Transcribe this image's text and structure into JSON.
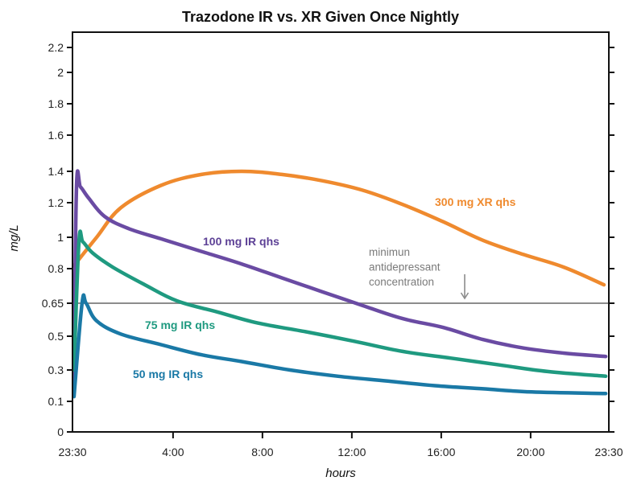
{
  "chart_data": {
    "type": "line",
    "title": "Trazodone IR vs. XR Given Once Nightly",
    "xlabel": "hours",
    "ylabel": "mg/L",
    "x_unit": "hours after 23:30 dose",
    "xlim": [
      0,
      24
    ],
    "x_ticks": [
      {
        "value": 0,
        "label": "23:30"
      },
      {
        "value": 4.5,
        "label": "4:00"
      },
      {
        "value": 8.5,
        "label": "8:00"
      },
      {
        "value": 12.5,
        "label": "12:00"
      },
      {
        "value": 16.5,
        "label": "16:00"
      },
      {
        "value": 20.5,
        "label": "20:00"
      },
      {
        "value": 24,
        "label": "23:30"
      }
    ],
    "y_ticks": [
      {
        "value": 0,
        "label": "0"
      },
      {
        "value": 0.1,
        "label": "0.1"
      },
      {
        "value": 0.3,
        "label": "0.3"
      },
      {
        "value": 0.5,
        "label": "0.5"
      },
      {
        "value": 0.65,
        "label": "0.65"
      },
      {
        "value": 0.8,
        "label": "0.8"
      },
      {
        "value": 1.0,
        "label": "1"
      },
      {
        "value": 1.2,
        "label": "1.2"
      },
      {
        "value": 1.4,
        "label": "1.4"
      },
      {
        "value": 1.6,
        "label": "1.6"
      },
      {
        "value": 1.8,
        "label": "1.8"
      },
      {
        "value": 2.0,
        "label": "2"
      },
      {
        "value": 2.2,
        "label": "2.2"
      }
    ],
    "ylim": [
      0,
      2.3
    ],
    "grid": false,
    "reference_line": {
      "value": 0.65,
      "label_lines": [
        "minimun",
        "antidepressant",
        "concentration"
      ],
      "color": "#8c8c8c"
    },
    "series": [
      {
        "name": "300 mg XR qhs",
        "color": "#ef8a2e",
        "x": [
          0.07,
          1.08,
          2.16,
          3.96,
          5.77,
          7.57,
          9.37,
          11.17,
          12.97,
          14.77,
          16.58,
          18.38,
          20.18,
          21.98,
          23.78
        ],
        "y": [
          0.82,
          1.0,
          1.17,
          1.31,
          1.38,
          1.4,
          1.38,
          1.34,
          1.28,
          1.19,
          1.09,
          0.98,
          0.89,
          0.81,
          0.73
        ]
      },
      {
        "name": "100 mg IR qhs",
        "color": "#6a4ba3",
        "x": [
          0.07,
          0.18,
          0.36,
          0.72,
          1.44,
          2.52,
          3.96,
          5.77,
          7.57,
          9.37,
          11.17,
          12.97,
          14.77,
          16.58,
          18.38,
          20.18,
          21.98,
          23.86
        ],
        "y": [
          0.22,
          1.3,
          1.3,
          1.23,
          1.12,
          1.05,
          0.99,
          0.91,
          0.83,
          0.76,
          0.7,
          0.64,
          0.58,
          0.54,
          0.48,
          0.43,
          0.4,
          0.38
        ]
      },
      {
        "name": "75 mg IR qhs",
        "color": "#1f9a80",
        "x": [
          0.07,
          0.29,
          0.47,
          0.9,
          1.8,
          3.24,
          4.68,
          6.49,
          8.29,
          10.45,
          12.61,
          14.77,
          16.94,
          19.1,
          21.26,
          23.86
        ],
        "y": [
          0.3,
          0.97,
          0.97,
          0.9,
          0.81,
          0.73,
          0.66,
          0.61,
          0.56,
          0.52,
          0.47,
          0.41,
          0.37,
          0.33,
          0.29,
          0.26
        ]
      },
      {
        "name": "50 mg IR qhs",
        "color": "#1a79a6",
        "x": [
          0.07,
          0.43,
          0.61,
          1.08,
          2.16,
          3.96,
          5.77,
          7.57,
          9.73,
          11.89,
          14.05,
          16.22,
          18.38,
          20.54,
          23.86
        ],
        "y": [
          0.13,
          0.65,
          0.65,
          0.57,
          0.51,
          0.45,
          0.39,
          0.35,
          0.3,
          0.26,
          0.23,
          0.2,
          0.18,
          0.16,
          0.15
        ]
      }
    ],
    "annotations": [
      {
        "text": "300 mg XR qhs",
        "series": "300 mg XR qhs"
      },
      {
        "text": "100 mg IR qhs",
        "series": "100 mg IR qhs"
      },
      {
        "text": "75 mg IR qhs",
        "series": "75 mg IR qhs"
      },
      {
        "text": "50 mg IR qhs",
        "series": "50 mg IR qhs"
      }
    ]
  }
}
